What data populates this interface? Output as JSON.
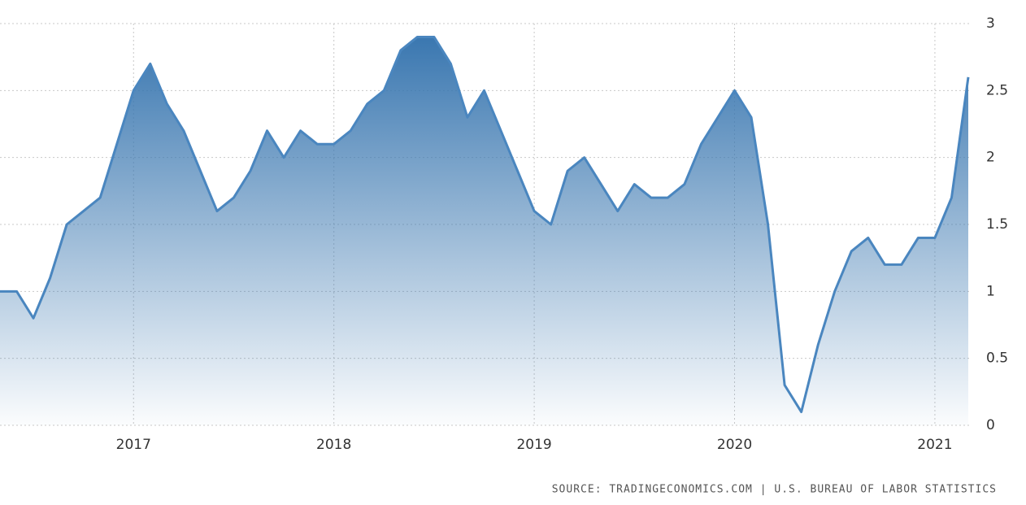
{
  "chart_data": {
    "type": "area",
    "categories": [
      null,
      null,
      null,
      null,
      null,
      null,
      null,
      null,
      "2017",
      null,
      null,
      null,
      null,
      null,
      null,
      null,
      null,
      null,
      null,
      null,
      "2018",
      null,
      null,
      null,
      null,
      null,
      null,
      null,
      null,
      null,
      null,
      null,
      "2019",
      null,
      null,
      null,
      null,
      null,
      null,
      null,
      null,
      null,
      null,
      null,
      "2020",
      null,
      null,
      null,
      null,
      null,
      null,
      null,
      null,
      null,
      null,
      null,
      "2021",
      null,
      null
    ],
    "series": [
      {
        "name": null,
        "color": "#4a86bf",
        "values": [
          1.0,
          1.0,
          0.8,
          1.1,
          1.5,
          1.6,
          1.7,
          2.1,
          2.5,
          2.7,
          2.4,
          2.2,
          1.9,
          1.6,
          1.7,
          1.9,
          2.2,
          2.0,
          2.2,
          2.1,
          2.1,
          2.2,
          2.4,
          2.5,
          2.8,
          2.9,
          2.9,
          2.7,
          2.3,
          2.5,
          2.2,
          1.9,
          1.6,
          1.5,
          1.9,
          2.0,
          1.8,
          1.6,
          1.8,
          1.7,
          1.7,
          1.8,
          2.1,
          2.3,
          2.5,
          2.3,
          1.5,
          0.3,
          0.1,
          0.6,
          1.0,
          1.3,
          1.4,
          1.2,
          1.2,
          1.4,
          1.4,
          1.7,
          2.6
        ]
      }
    ],
    "ylim": [
      0,
      3
    ],
    "yticks": [
      0,
      0.5,
      1,
      1.5,
      2,
      2.5,
      3
    ],
    "grid": true,
    "source": "SOURCE: TRADINGECONOMICS.COM | U.S. BUREAU OF LABOR STATISTICS"
  }
}
